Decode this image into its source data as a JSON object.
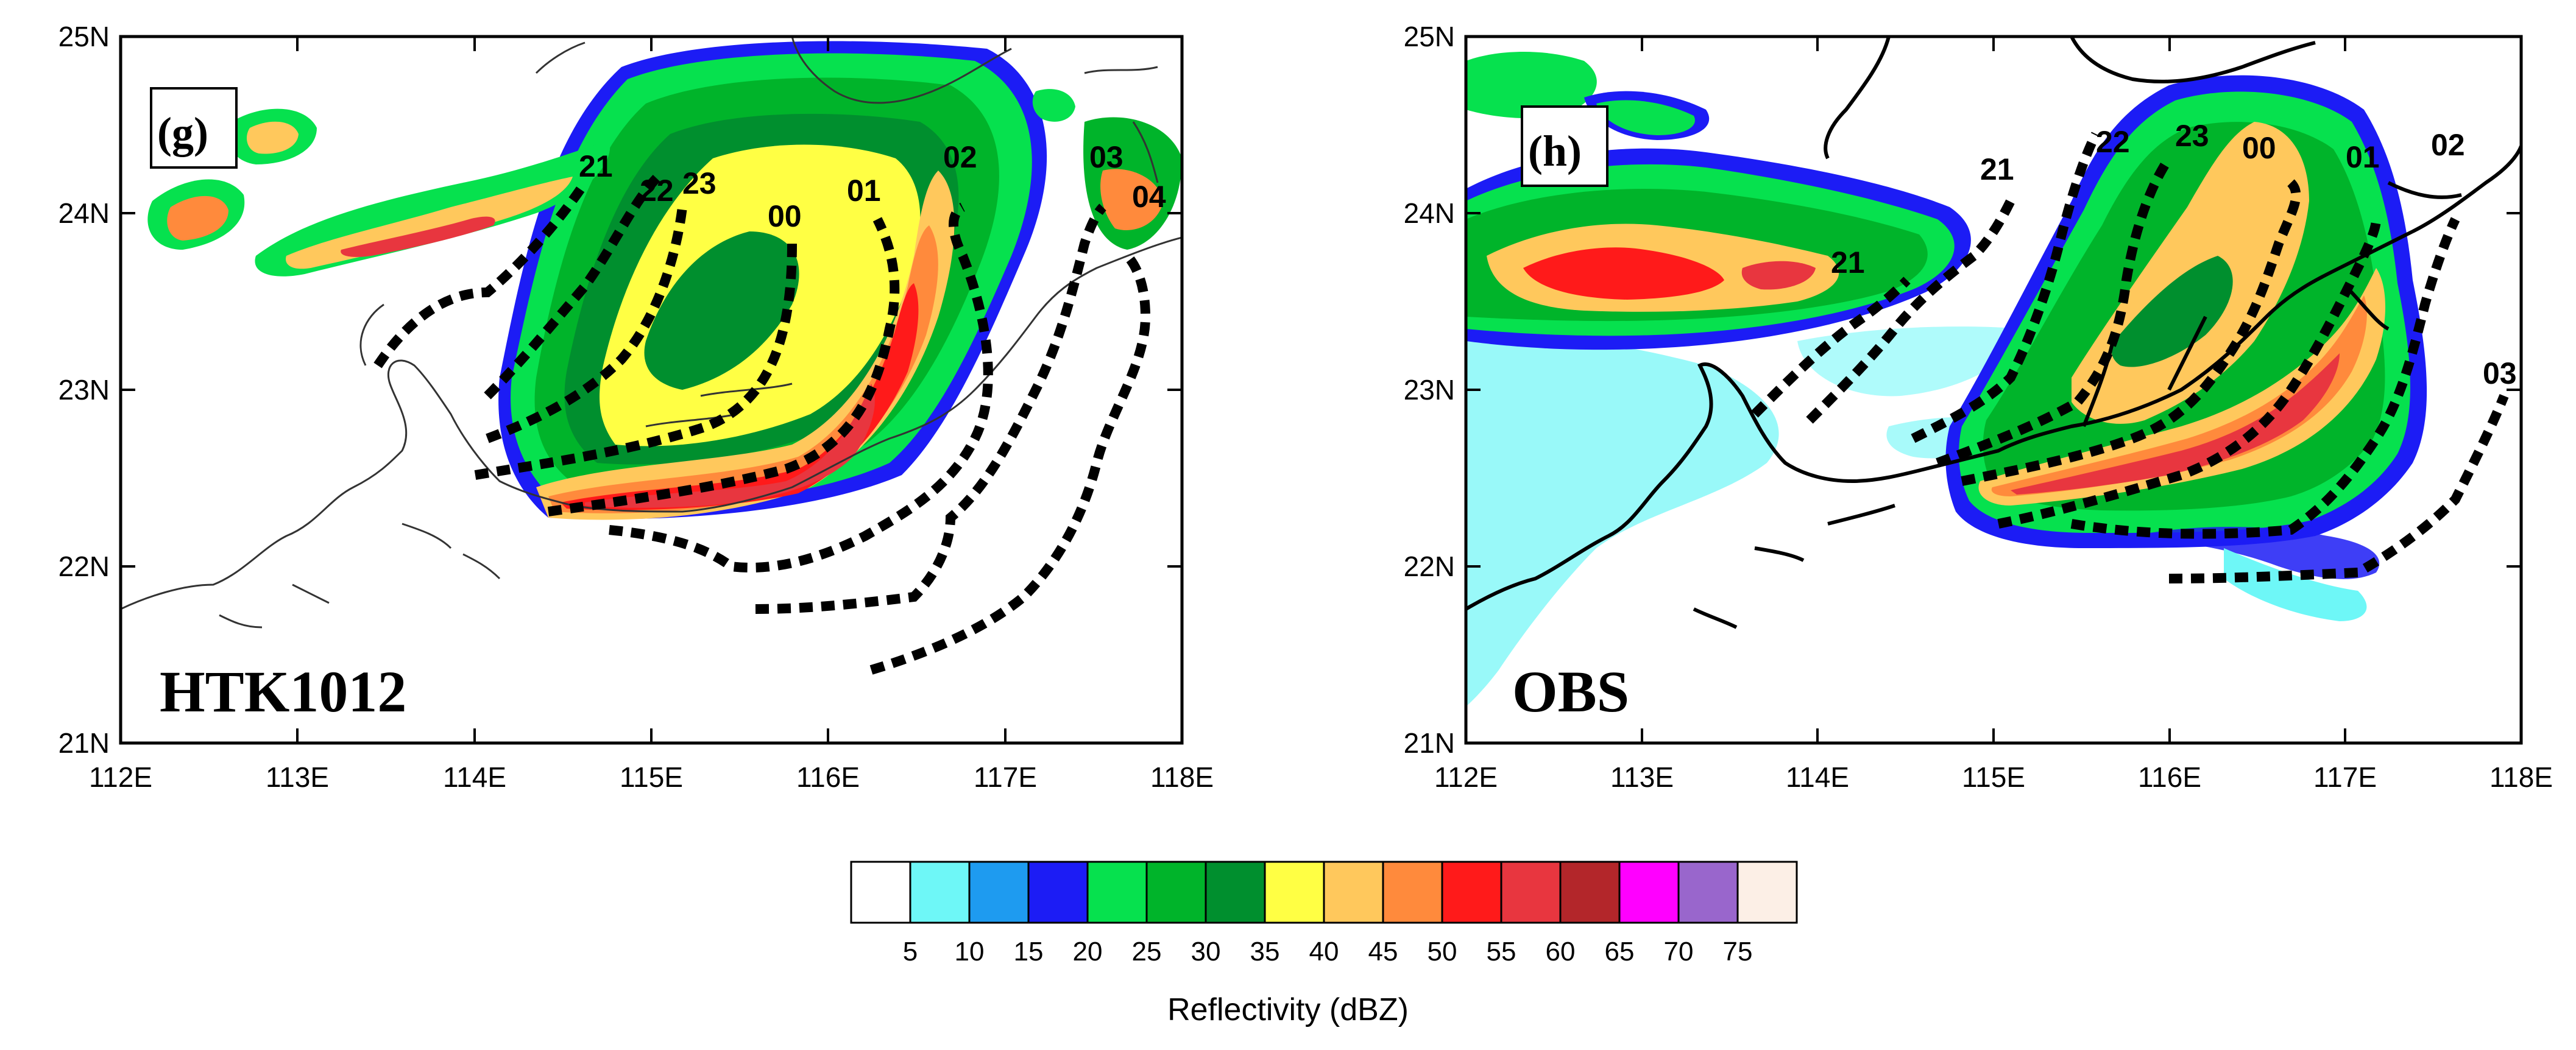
{
  "panels": [
    {
      "id": "g",
      "letter": "(g)",
      "name": "HTK1012",
      "x_ticks": [
        "112E",
        "113E",
        "114E",
        "115E",
        "116E",
        "117E",
        "118E"
      ],
      "y_ticks": [
        "25N",
        "24N",
        "23N",
        "22N",
        "21N"
      ],
      "time_labels": [
        "21",
        "22",
        "23",
        "00",
        "01",
        "02",
        "03",
        "04"
      ]
    },
    {
      "id": "h",
      "letter": "(h)",
      "name": "OBS",
      "x_ticks": [
        "112E",
        "113E",
        "114E",
        "115E",
        "116E",
        "117E",
        "118E"
      ],
      "y_ticks": [
        "25N",
        "24N",
        "23N",
        "22N",
        "21N"
      ],
      "time_labels": [
        "21",
        "21",
        "22",
        "23",
        "00",
        "01",
        "02",
        "03"
      ]
    }
  ],
  "colorbar": {
    "title": "Reflectivity (dBZ)",
    "levels": [
      "5",
      "10",
      "15",
      "20",
      "25",
      "30",
      "35",
      "40",
      "45",
      "50",
      "55",
      "60",
      "65",
      "70",
      "75"
    ],
    "colors": [
      "#ffffff",
      "#6ef7f7",
      "#1e9bf0",
      "#1c1cf5",
      "#06e14e",
      "#00b42a",
      "#008f2e",
      "#ffff44",
      "#ffc85c",
      "#ff8a3c",
      "#ff1a1a",
      "#e8363f",
      "#b3262a",
      "#ff00ff",
      "#9966cc",
      "#fcefe6"
    ]
  }
}
